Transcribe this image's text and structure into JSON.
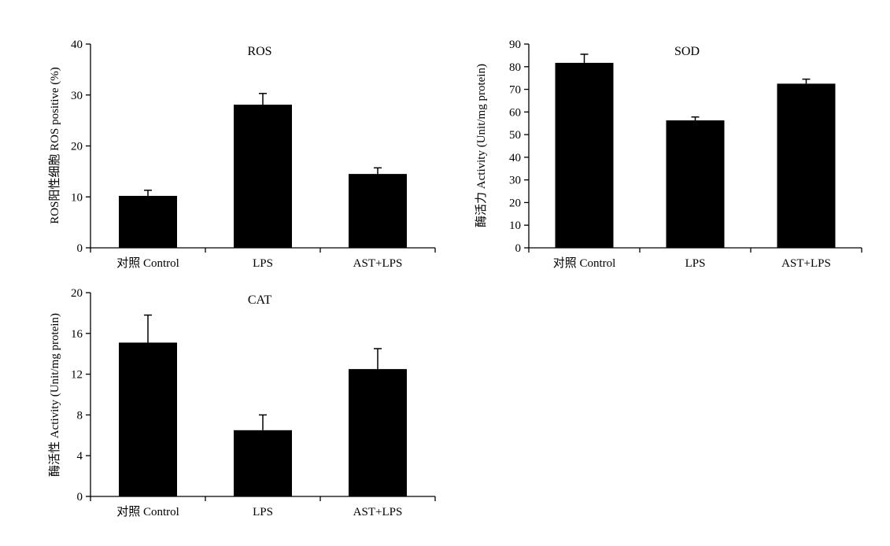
{
  "colors": {
    "bar": "#000000",
    "axis": "#000000",
    "background": "#ffffff"
  },
  "chart_data": [
    {
      "type": "bar",
      "title": "ROS",
      "ylabel": "ROS阳性细胞 ROS positive (%)",
      "xlabel": "",
      "categories": [
        "对照 Control",
        "LPS",
        "AST+LPS"
      ],
      "values": [
        10.2,
        28.1,
        14.5
      ],
      "errors": [
        1.1,
        2.2,
        1.2
      ],
      "ylim": [
        0,
        40
      ],
      "yticks": [
        0,
        10,
        20,
        30,
        40
      ],
      "grid": false
    },
    {
      "type": "bar",
      "title": "SOD",
      "ylabel": "酶活力 Activity (Unit/mg protein)",
      "xlabel": "",
      "categories": [
        "对照 Control",
        "LPS",
        "AST+LPS"
      ],
      "values": [
        81.7,
        56.3,
        72.5
      ],
      "errors": [
        3.8,
        1.5,
        2.0
      ],
      "ylim": [
        0,
        90
      ],
      "yticks": [
        0,
        10,
        20,
        30,
        40,
        50,
        60,
        70,
        80,
        90
      ],
      "grid": false
    },
    {
      "type": "bar",
      "title": "CAT",
      "ylabel": "酶活性 Activity (Unit/mg protein)",
      "xlabel": "",
      "categories": [
        "对照 Control",
        "LPS",
        "AST+LPS"
      ],
      "values": [
        15.1,
        6.5,
        12.5
      ],
      "errors": [
        2.7,
        1.5,
        2.0
      ],
      "ylim": [
        0,
        20
      ],
      "yticks": [
        0,
        4,
        8,
        12,
        16,
        20
      ],
      "grid": false
    }
  ]
}
